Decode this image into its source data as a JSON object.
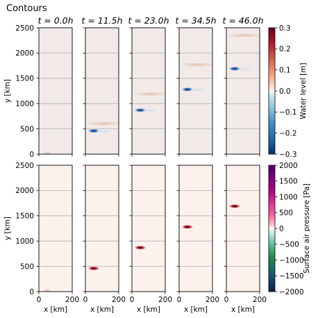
{
  "header": {
    "title": "Contours"
  },
  "chart_data": {
    "type": "heatmap",
    "columns": [
      {
        "label": "$t=0.0$h",
        "t_h": 0.0
      },
      {
        "label": "$t=11.5$h",
        "t_h": 11.5
      },
      {
        "label": "$t=23.0$h",
        "t_h": 23.0
      },
      {
        "label": "$t=34.5$h",
        "t_h": 34.5
      },
      {
        "label": "$t=46.0$h",
        "t_h": 46.0
      }
    ],
    "column_titles": [
      "t = 0.0h",
      "t = 11.5h",
      "t = 23.0h",
      "t = 34.5h",
      "t = 46.0h"
    ],
    "xlabel": "x [km]",
    "ylabel": "y [km]",
    "xlim": [
      0,
      200
    ],
    "ylim": [
      0,
      2500
    ],
    "xticks": [
      "0",
      "200"
    ],
    "yticks": [
      "0",
      "500",
      "1000",
      "1500",
      "2000",
      "2500"
    ],
    "grid": "horizontal",
    "rows": [
      {
        "id": "water-level",
        "colorbar_label": "Water level [m]",
        "colormap": "RdBu_r",
        "clim": [
          -0.3,
          0.3
        ],
        "colorbar_ticks": [
          "0.3",
          "0.2",
          "0.1",
          "0.0",
          "−0.1",
          "−0.2",
          "−0.3"
        ],
        "background_value": 0.0,
        "features": [
          {
            "t_h": 0.0,
            "x": 50,
            "y": 20,
            "value": 0.04,
            "kind": "dot"
          },
          {
            "t_h": 11.5,
            "x": 50,
            "y": 460,
            "value": -0.25,
            "kind": "dot"
          },
          {
            "t_h": 11.5,
            "x": 130,
            "y": 605,
            "value": 0.03,
            "kind": "band"
          },
          {
            "t_h": 23.0,
            "x": 50,
            "y": 870,
            "value": -0.28,
            "kind": "dot"
          },
          {
            "t_h": 23.0,
            "x": 130,
            "y": 1190,
            "value": 0.03,
            "kind": "band"
          },
          {
            "t_h": 34.5,
            "x": 50,
            "y": 1280,
            "value": -0.28,
            "kind": "dot"
          },
          {
            "t_h": 34.5,
            "x": 130,
            "y": 1770,
            "value": 0.03,
            "kind": "band"
          },
          {
            "t_h": 46.0,
            "x": 50,
            "y": 1690,
            "value": -0.28,
            "kind": "dot"
          },
          {
            "t_h": 46.0,
            "x": 130,
            "y": 2350,
            "value": 0.03,
            "kind": "band"
          }
        ]
      },
      {
        "id": "surface-air-pressure",
        "colorbar_label": "Surface air pressure [Pa]",
        "colormap": "PuBuGn_r / RdPu",
        "clim": [
          -2000,
          2000
        ],
        "colorbar_ticks": [
          "2000",
          "1500",
          "1000",
          "500",
          "0",
          "−500",
          "−1000",
          "−1500",
          "−2000"
        ],
        "background_value": 0,
        "features": [
          {
            "t_h": 0.0,
            "x": 50,
            "y": 20,
            "value": 600,
            "kind": "dot"
          },
          {
            "t_h": 11.5,
            "x": 50,
            "y": 460,
            "value": 1900,
            "kind": "dot"
          },
          {
            "t_h": 23.0,
            "x": 50,
            "y": 870,
            "value": 1900,
            "kind": "dot"
          },
          {
            "t_h": 34.5,
            "x": 50,
            "y": 1280,
            "value": 1900,
            "kind": "dot"
          },
          {
            "t_h": 46.0,
            "x": 50,
            "y": 1690,
            "value": 1900,
            "kind": "dot"
          }
        ]
      }
    ]
  },
  "colors": {
    "water_background": "#f1eae8",
    "pressure_background": "#fdf1ed",
    "water_negative": "#1f5aa6",
    "water_positive": "#e7c4b6",
    "pressure_positive": "#8b0a1e",
    "pressure_positive_light": "#e8a7a0",
    "grid": "#b0b0b0"
  }
}
